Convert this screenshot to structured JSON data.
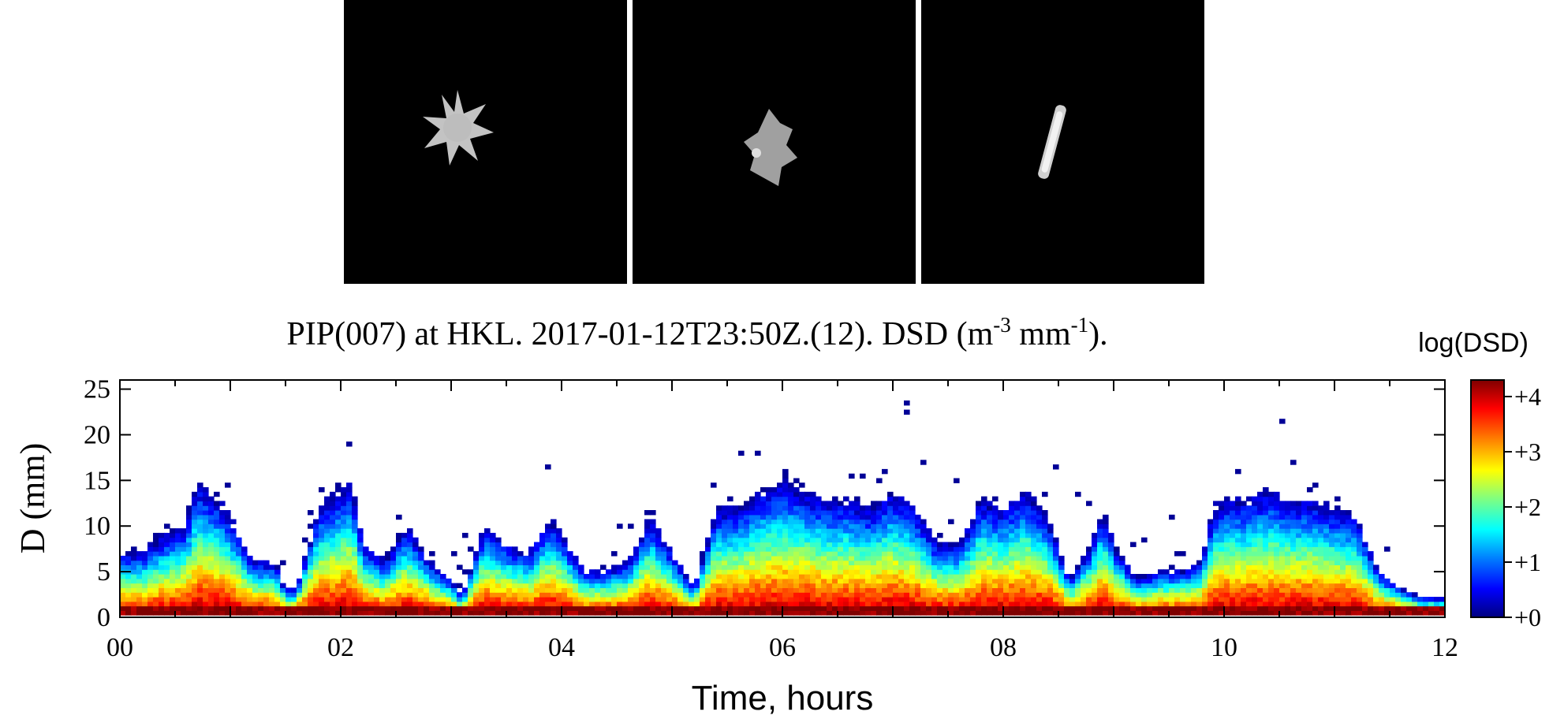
{
  "image_panels": [
    {
      "subject": "stellar-dendrite-snowflake"
    },
    {
      "subject": "rimed-snowflake"
    },
    {
      "subject": "needle-column-snowflake"
    }
  ],
  "chart_data": {
    "type": "heatmap",
    "title": "PIP(007) at HKL. 2017-01-12T23:50Z.(12). DSD (m",
    "title_parts": {
      "pre": "PIP(007) at HKL. 2017-01-12T23:50Z.(12). DSD (m",
      "sup1": "-3",
      "mid": " mm",
      "sup2": "-1",
      "post": ")."
    },
    "xlabel": "Time, hours",
    "ylabel": "D (mm)",
    "xlim": [
      0,
      12
    ],
    "ylim": [
      0,
      26
    ],
    "x_ticks": [
      "00",
      "02",
      "04",
      "06",
      "08",
      "10",
      "12"
    ],
    "x_tick_values": [
      0,
      2,
      4,
      6,
      8,
      10,
      12
    ],
    "y_ticks": [
      "0",
      "5",
      "10",
      "15",
      "20",
      "25"
    ],
    "y_tick_values": [
      0,
      5,
      10,
      15,
      20,
      25
    ],
    "colorbar": {
      "title": "log(DSD)",
      "range": [
        0,
        4.3
      ],
      "ticks": [
        "+0",
        "+1",
        "+2",
        "+3",
        "+4"
      ],
      "tick_values": [
        0,
        1,
        2,
        3,
        4
      ],
      "colormap": [
        "#00007f",
        "#0000ff",
        "#0080ff",
        "#00ffff",
        "#80ff80",
        "#ffff00",
        "#ff8000",
        "#ff0000",
        "#7f0000"
      ]
    },
    "approx_max_visible_diameter_mm": [
      [
        0.0,
        7
      ],
      [
        0.2,
        7
      ],
      [
        0.4,
        9
      ],
      [
        0.6,
        10
      ],
      [
        0.7,
        15
      ],
      [
        0.8,
        14
      ],
      [
        0.9,
        13
      ],
      [
        1.0,
        11
      ],
      [
        1.2,
        6
      ],
      [
        1.4,
        6
      ],
      [
        1.5,
        3
      ],
      [
        1.6,
        3
      ],
      [
        1.8,
        12
      ],
      [
        2.0,
        14
      ],
      [
        2.1,
        15
      ],
      [
        2.2,
        8
      ],
      [
        2.4,
        6
      ],
      [
        2.6,
        10
      ],
      [
        2.8,
        6
      ],
      [
        3.0,
        4
      ],
      [
        3.1,
        2
      ],
      [
        3.3,
        10
      ],
      [
        3.5,
        8
      ],
      [
        3.7,
        7
      ],
      [
        3.9,
        11
      ],
      [
        4.0,
        9
      ],
      [
        4.2,
        5
      ],
      [
        4.4,
        5
      ],
      [
        4.6,
        6
      ],
      [
        4.8,
        11
      ],
      [
        5.0,
        7
      ],
      [
        5.2,
        3
      ],
      [
        5.4,
        12
      ],
      [
        5.6,
        12
      ],
      [
        5.8,
        14
      ],
      [
        6.0,
        15
      ],
      [
        6.2,
        14
      ],
      [
        6.4,
        13
      ],
      [
        6.6,
        13
      ],
      [
        6.8,
        12
      ],
      [
        7.0,
        14
      ],
      [
        7.2,
        12
      ],
      [
        7.4,
        8
      ],
      [
        7.6,
        8
      ],
      [
        7.8,
        13
      ],
      [
        8.0,
        12
      ],
      [
        8.2,
        14
      ],
      [
        8.4,
        11
      ],
      [
        8.6,
        4
      ],
      [
        8.8,
        8
      ],
      [
        8.9,
        12
      ],
      [
        9.0,
        8
      ],
      [
        9.2,
        4
      ],
      [
        9.4,
        5
      ],
      [
        9.6,
        5
      ],
      [
        9.8,
        6
      ],
      [
        9.9,
        12
      ],
      [
        10.0,
        13
      ],
      [
        10.2,
        13
      ],
      [
        10.4,
        14
      ],
      [
        10.6,
        13
      ],
      [
        10.8,
        13
      ],
      [
        11.0,
        12
      ],
      [
        11.2,
        11
      ],
      [
        11.4,
        5
      ],
      [
        11.6,
        3
      ],
      [
        11.8,
        2
      ],
      [
        12.0,
        2
      ]
    ]
  }
}
